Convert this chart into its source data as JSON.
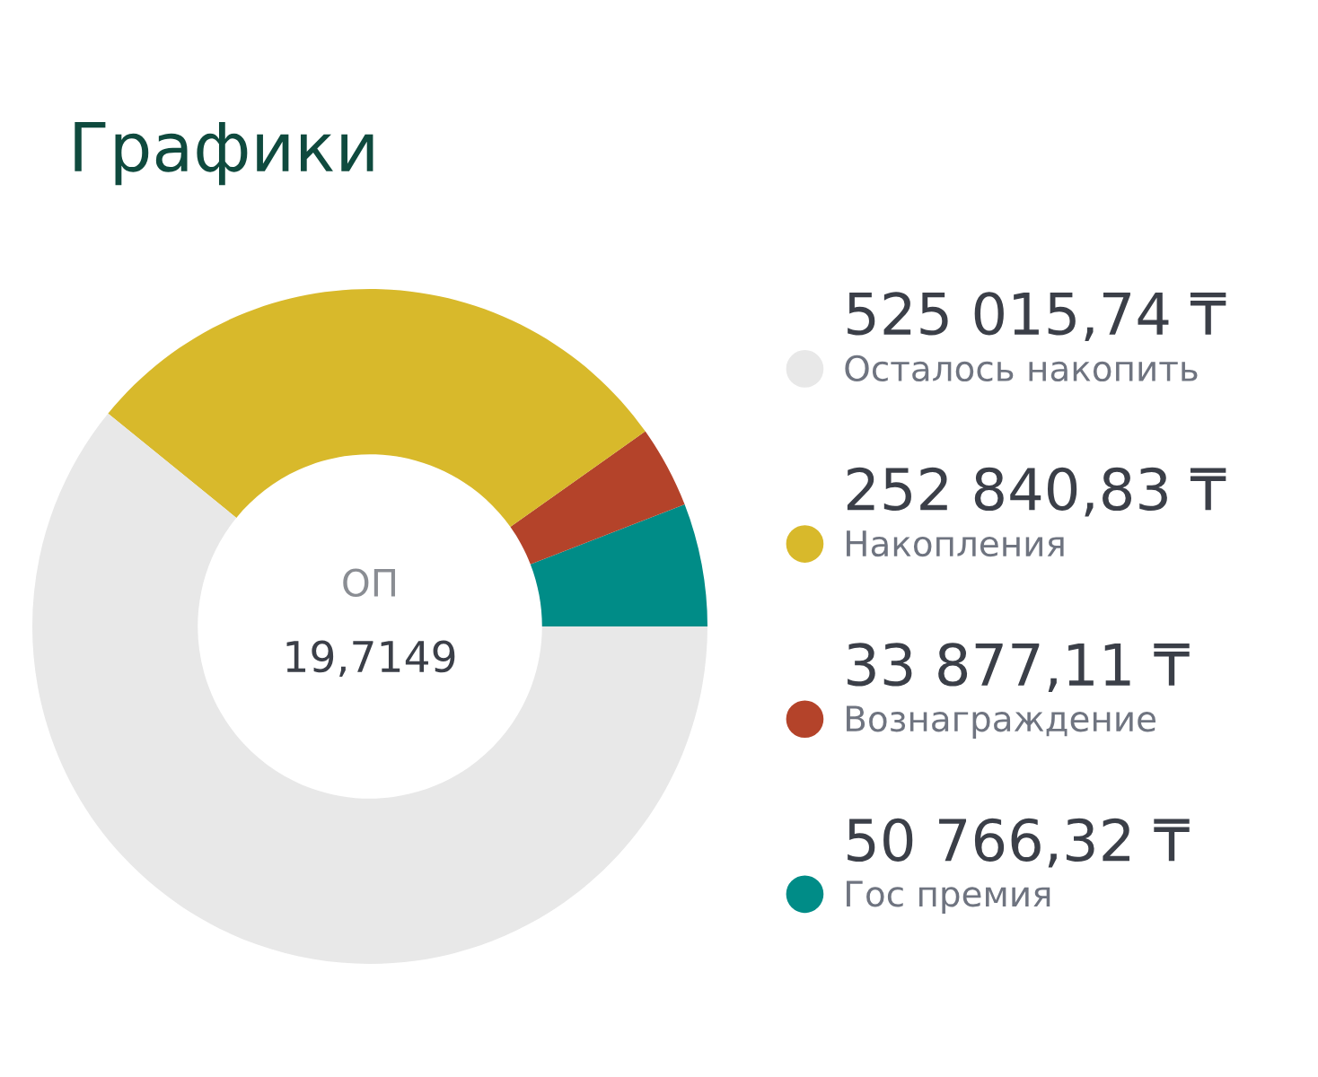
{
  "chart_data": {
    "type": "donut",
    "title": "Графики",
    "categories": [
      "Осталось накопить",
      "Накопления",
      "Вознаграждение",
      "Гос премия"
    ],
    "values": [
      525015.74,
      252840.83,
      33877.11,
      50766.32
    ],
    "value_labels": [
      "525 015,74 ₸",
      "252 840,83 ₸",
      "33 877,11 ₸",
      "50 766,32 ₸"
    ],
    "colors": [
      "#e8e8e8",
      "#d8b92b",
      "#b4432a",
      "#008c87"
    ],
    "annotations": [
      "ОП",
      "19,7149"
    ],
    "legend": "right"
  }
}
